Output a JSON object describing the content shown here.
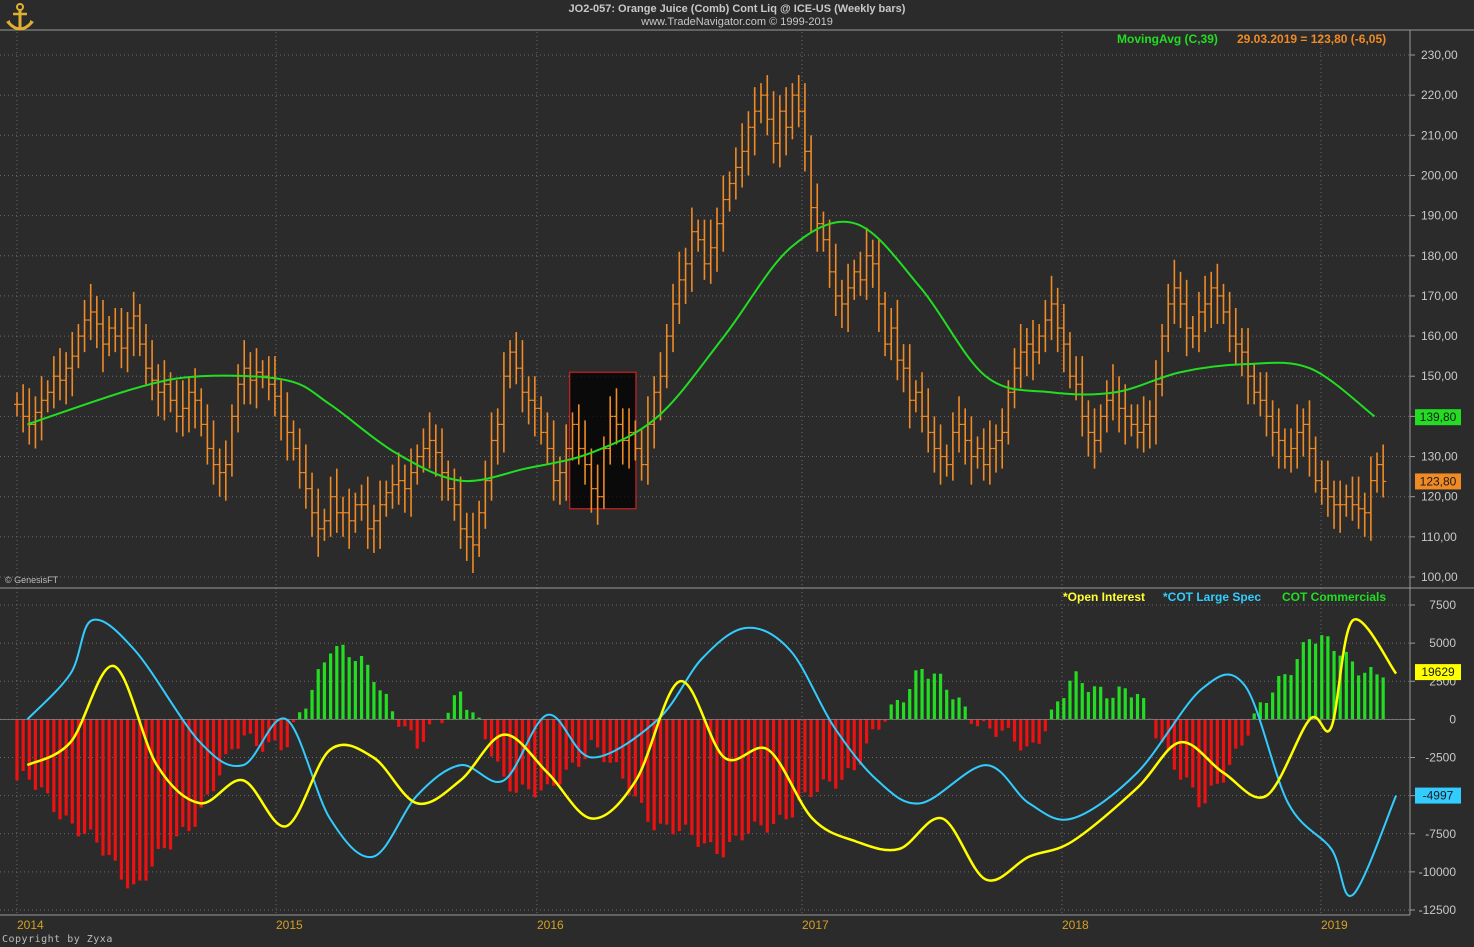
{
  "header": {
    "title": "JO2-057:  Orange Juice (Comb) Cont Liq @ ICE-US  (Weekly bars)",
    "subtitle": "www.TradeNavigator.com © 1999-2019"
  },
  "legend_top": {
    "ma_label": "MovingAvg (C,39)",
    "ma_value_text": "29.03.2019 = 123,80 (-6,05)"
  },
  "legend_bottom": {
    "oi": "*Open Interest",
    "large_spec": "*COT Large Spec",
    "commercials": "COT Commercials"
  },
  "watermark": "© GenesisFT",
  "copyright": "Copyright by Zyxa",
  "colors": {
    "background": "#2b2b2b",
    "grid": "#6a6a6a",
    "price_bars": "#f08a24",
    "moving_avg": "#22dd22",
    "open_interest": "#ffff00",
    "large_spec": "#33ccff",
    "commercials_pos": "#22dd22",
    "commercials_neg": "#ee1111",
    "highlight_box_border": "#cc2222",
    "x_labels": "#d4a020"
  },
  "chart_data": [
    {
      "type": "bar",
      "subtype": "ohlc",
      "name": "price",
      "ylim": [
        100,
        235
      ],
      "yticks": [
        "230,00",
        "220,00",
        "210,00",
        "200,00",
        "190,00",
        "180,00",
        "170,00",
        "160,00",
        "150,00",
        "140,00",
        "130,00",
        "120,00",
        "110,00",
        "100,00"
      ],
      "xticks": [
        "2014",
        "2015",
        "2016",
        "2017",
        "2018",
        "2019"
      ],
      "last_close_label": "123,80",
      "ma_last_label": "139,80",
      "grid": true,
      "highlight": {
        "from": "2016-02",
        "to": "2016-05",
        "low": 117,
        "high": 151
      },
      "close": [
        143,
        140,
        138,
        141,
        144,
        146,
        150,
        149,
        152,
        155,
        160,
        164,
        166,
        163,
        158,
        162,
        160,
        157,
        162,
        165,
        158,
        152,
        149,
        146,
        148,
        144,
        140,
        142,
        146,
        144,
        138,
        132,
        128,
        126,
        128,
        140,
        148,
        152,
        149,
        151,
        150,
        148,
        145,
        140,
        136,
        132,
        126,
        122,
        116,
        112,
        114,
        120,
        116,
        116,
        114,
        118,
        118,
        112,
        114,
        118,
        121,
        123,
        124,
        122,
        126,
        130,
        132,
        134,
        131,
        126,
        122,
        118,
        112,
        110,
        108,
        116,
        124,
        134,
        138,
        150,
        156,
        152,
        146,
        144,
        142,
        136,
        132,
        124,
        126,
        132,
        138,
        132,
        128,
        122,
        120,
        132,
        140,
        138,
        134,
        136,
        132,
        128,
        138,
        146,
        150,
        160,
        168,
        174,
        178,
        186,
        184,
        178,
        182,
        188,
        194,
        198,
        202,
        206,
        212,
        216,
        220,
        214,
        208,
        216,
        212,
        220,
        216,
        206,
        192,
        188,
        184,
        176,
        170,
        168,
        172,
        176,
        174,
        180,
        178,
        168,
        158,
        162,
        154,
        152,
        144,
        146,
        140,
        136,
        132,
        130,
        128,
        136,
        138,
        134,
        130,
        132,
        128,
        132,
        134,
        136,
        146,
        152,
        156,
        158,
        156,
        160,
        164,
        168,
        162,
        158,
        150,
        148,
        140,
        136,
        134,
        140,
        144,
        146,
        142,
        140,
        138,
        136,
        138,
        140,
        148,
        160,
        168,
        172,
        168,
        162,
        160,
        166,
        168,
        172,
        170,
        166,
        160,
        158,
        156,
        150,
        146,
        144,
        140,
        136,
        134,
        130,
        132,
        136,
        138,
        132,
        124,
        122,
        120,
        118,
        118,
        120,
        118,
        117,
        116,
        124,
        128,
        123.8
      ]
    },
    {
      "type": "line",
      "name": "MovingAvg (C,39)",
      "role": "overlay on price",
      "values_by_period": {
        "2014-01": 138,
        "2014-06": 147,
        "2014-09": 150,
        "2015-01": 149,
        "2015-03": 143,
        "2015-06": 131,
        "2015-09": 124,
        "2015-12": 127,
        "2016-03": 131,
        "2016-06": 140,
        "2016-09": 160,
        "2016-12": 182,
        "2017-03": 188,
        "2017-06": 172,
        "2017-09": 150,
        "2017-12": 146,
        "2018-03": 146,
        "2018-06": 151,
        "2018-09": 153,
        "2018-12": 152,
        "2019-03": 140
      }
    },
    {
      "type": "bar",
      "name": "COT Commercials",
      "ylim": [
        -12500,
        7500
      ],
      "yticks": [
        "7500",
        "5000",
        "2500",
        "0",
        "-2500",
        "-5000",
        "-7500",
        "-10000",
        "-12500"
      ],
      "values_by_period": {
        "2014-01": -4000,
        "2014-04": -8000,
        "2014-06": -11000,
        "2014-09": -6000,
        "2014-11": -1000,
        "2015-01": -2000,
        "2015-03": 5000,
        "2015-05": 3000,
        "2015-07": -2000,
        "2015-09": 2000,
        "2015-11": -4000,
        "2016-01": -5000,
        "2016-03": -1500,
        "2016-06": -7000,
        "2016-09": -8500,
        "2016-12": -6000,
        "2017-03": -3000,
        "2017-06": 3500,
        "2017-09": -500,
        "2017-11": -2000,
        "2018-01": 2500,
        "2018-04": 1500,
        "2018-07": -6000,
        "2018-09": -1000,
        "2018-12": 5500,
        "2019-03": 3000
      }
    },
    {
      "type": "line",
      "name": "*COT Large Spec",
      "last_label": "-4997",
      "values_by_period": {
        "2014-01": 0,
        "2014-03": 3000,
        "2014-04": 6500,
        "2014-06": 4500,
        "2014-09": -1500,
        "2014-11": -3000,
        "2015-01": 0,
        "2015-03": -6500,
        "2015-05": -9000,
        "2015-07": -5000,
        "2015-09": -3000,
        "2015-11": -4000,
        "2016-01": 300,
        "2016-03": -2500,
        "2016-06": 0,
        "2016-08": 4000,
        "2016-10": 6000,
        "2016-12": 4500,
        "2017-02": -500,
        "2017-04": -4000,
        "2017-06": -5500,
        "2017-09": -3000,
        "2017-11": -5500,
        "2018-01": -6500,
        "2018-04": -3500,
        "2018-07": 2000,
        "2018-09": 2200,
        "2018-11": -5500,
        "2019-01": -8500,
        "2019-02": -11500,
        "2019-04": -4997
      }
    },
    {
      "type": "line",
      "name": "*Open Interest",
      "last_label": "19629",
      "values_by_period": {
        "2014-01": -3000,
        "2014-03": -1500,
        "2014-05": 3500,
        "2014-07": -3000,
        "2014-09": -5500,
        "2014-11": -4000,
        "2015-01": -7000,
        "2015-03": -2000,
        "2015-05": -2500,
        "2015-07": -5500,
        "2015-09": -4000,
        "2015-11": -1000,
        "2016-01": -3500,
        "2016-03": -6500,
        "2016-05": -4000,
        "2016-07": 2500,
        "2016-09": -2500,
        "2016-11": -2000,
        "2017-01": -6500,
        "2017-03": -8000,
        "2017-05": -8500,
        "2017-07": -6500,
        "2017-09": -10500,
        "2017-11": -9000,
        "2018-01": -8000,
        "2018-04": -4500,
        "2018-06": -1500,
        "2018-08": -3500,
        "2018-10": -5000,
        "2018-12": 0,
        "2019-01": -500,
        "2019-02": 6500,
        "2019-04": 3000
      }
    }
  ]
}
